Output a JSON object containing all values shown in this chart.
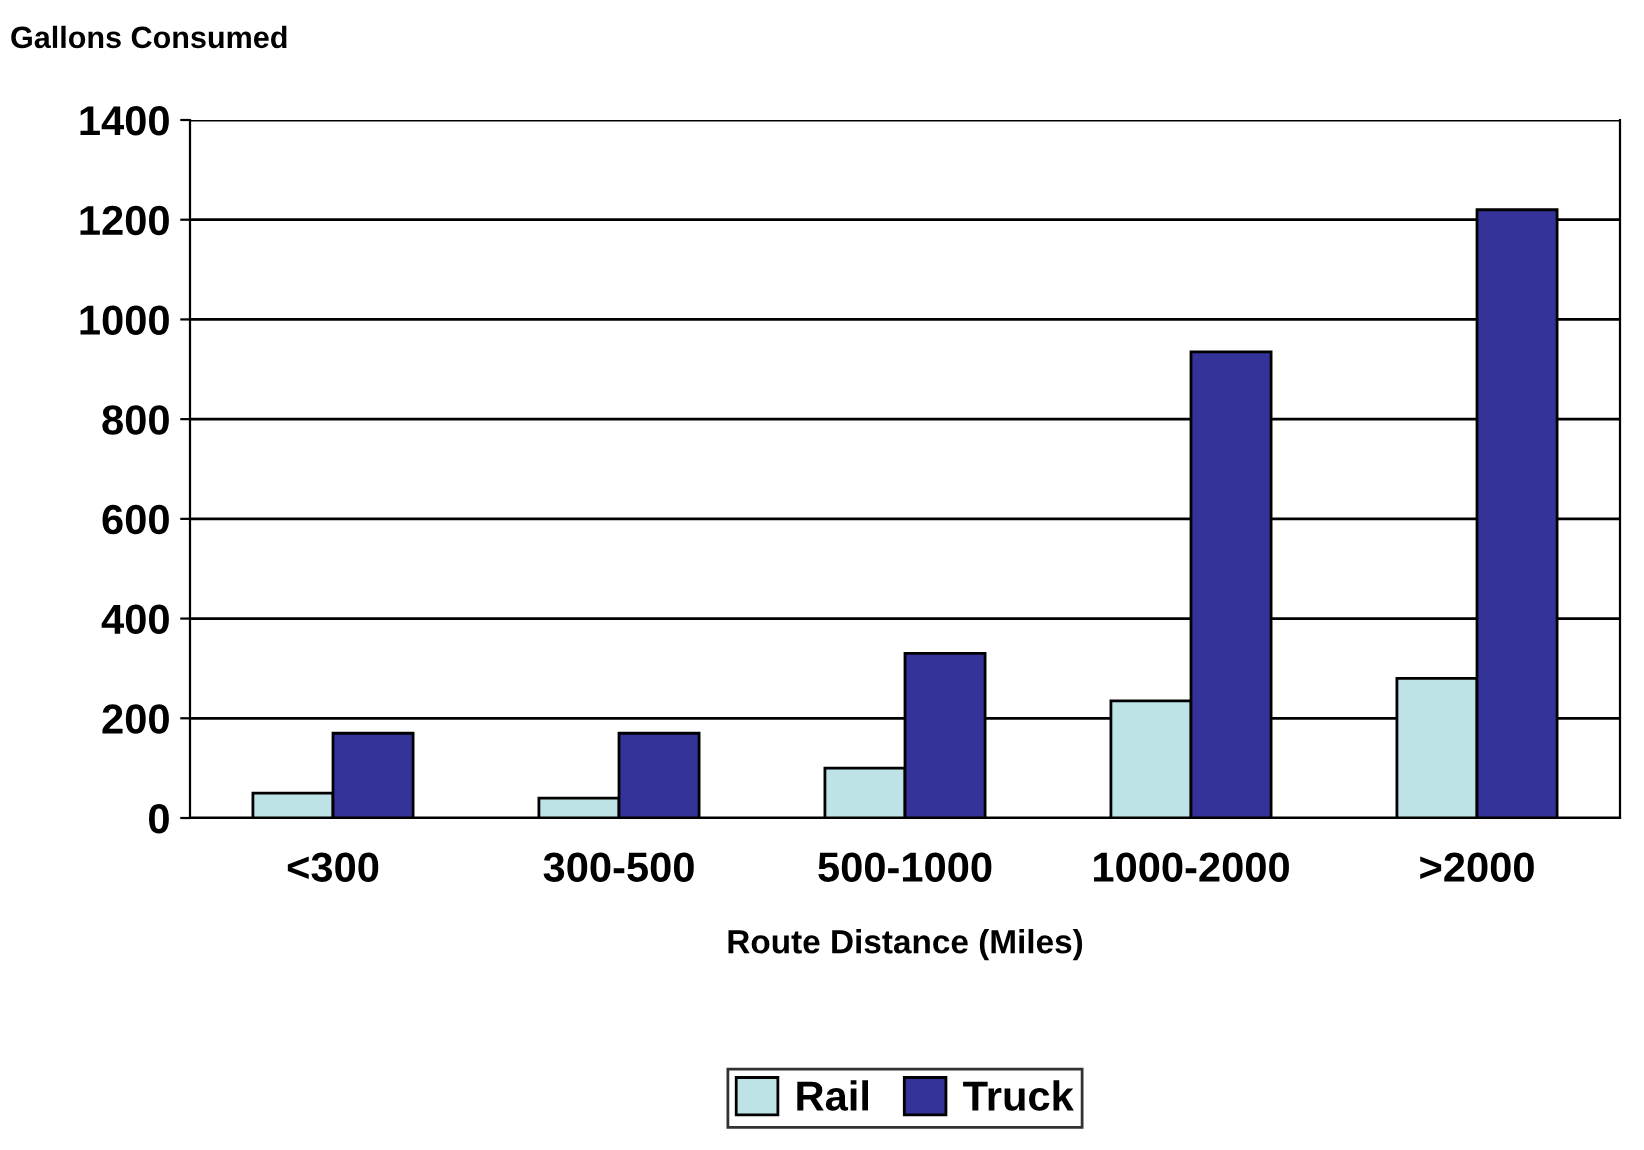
{
  "chart_data": {
    "type": "bar",
    "ylabel": "Gallons Consumed",
    "xlabel": "Route Distance (Miles)",
    "categories": [
      "<300",
      "300-500",
      "500-1000",
      "1000-2000",
      ">2000"
    ],
    "series": [
      {
        "name": "Rail",
        "color": "#bde3e6",
        "values": [
          50,
          40,
          100,
          235,
          280
        ]
      },
      {
        "name": "Truck",
        "color": "#333399",
        "values": [
          170,
          170,
          330,
          935,
          1220
        ]
      }
    ],
    "ylim": [
      0,
      1400
    ],
    "yticks": [
      0,
      200,
      400,
      600,
      800,
      1000,
      1200,
      1400
    ],
    "grid": "y",
    "legend": "bottom"
  }
}
